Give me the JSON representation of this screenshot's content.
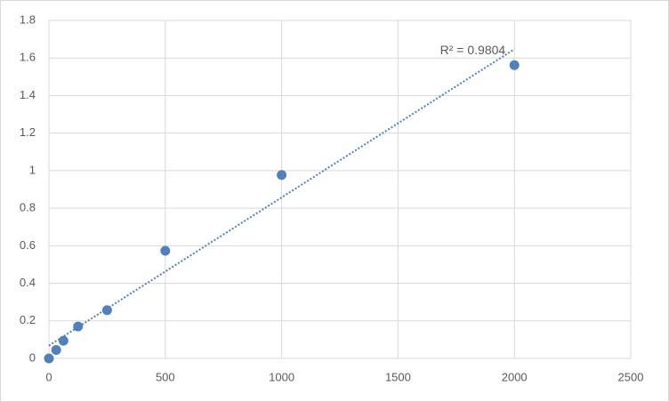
{
  "chart_data": {
    "type": "scatter",
    "annotation": "R² = 0.9804",
    "x": [
      0,
      31.25,
      62.5,
      125,
      250,
      500,
      1000,
      2000
    ],
    "values": [
      0,
      0.045,
      0.094,
      0.17,
      0.257,
      0.573,
      0.977,
      1.562
    ],
    "color": "#4f81bd",
    "trendline": "linear",
    "xlim": [
      0,
      2500
    ],
    "xticks": [
      0,
      500,
      1000,
      1500,
      2000,
      2500
    ],
    "ylim": [
      0,
      1.8
    ],
    "yticks": [
      0,
      0.2,
      0.4,
      0.6,
      0.8,
      1,
      1.2,
      1.4,
      1.6,
      1.8
    ],
    "grid": true
  }
}
